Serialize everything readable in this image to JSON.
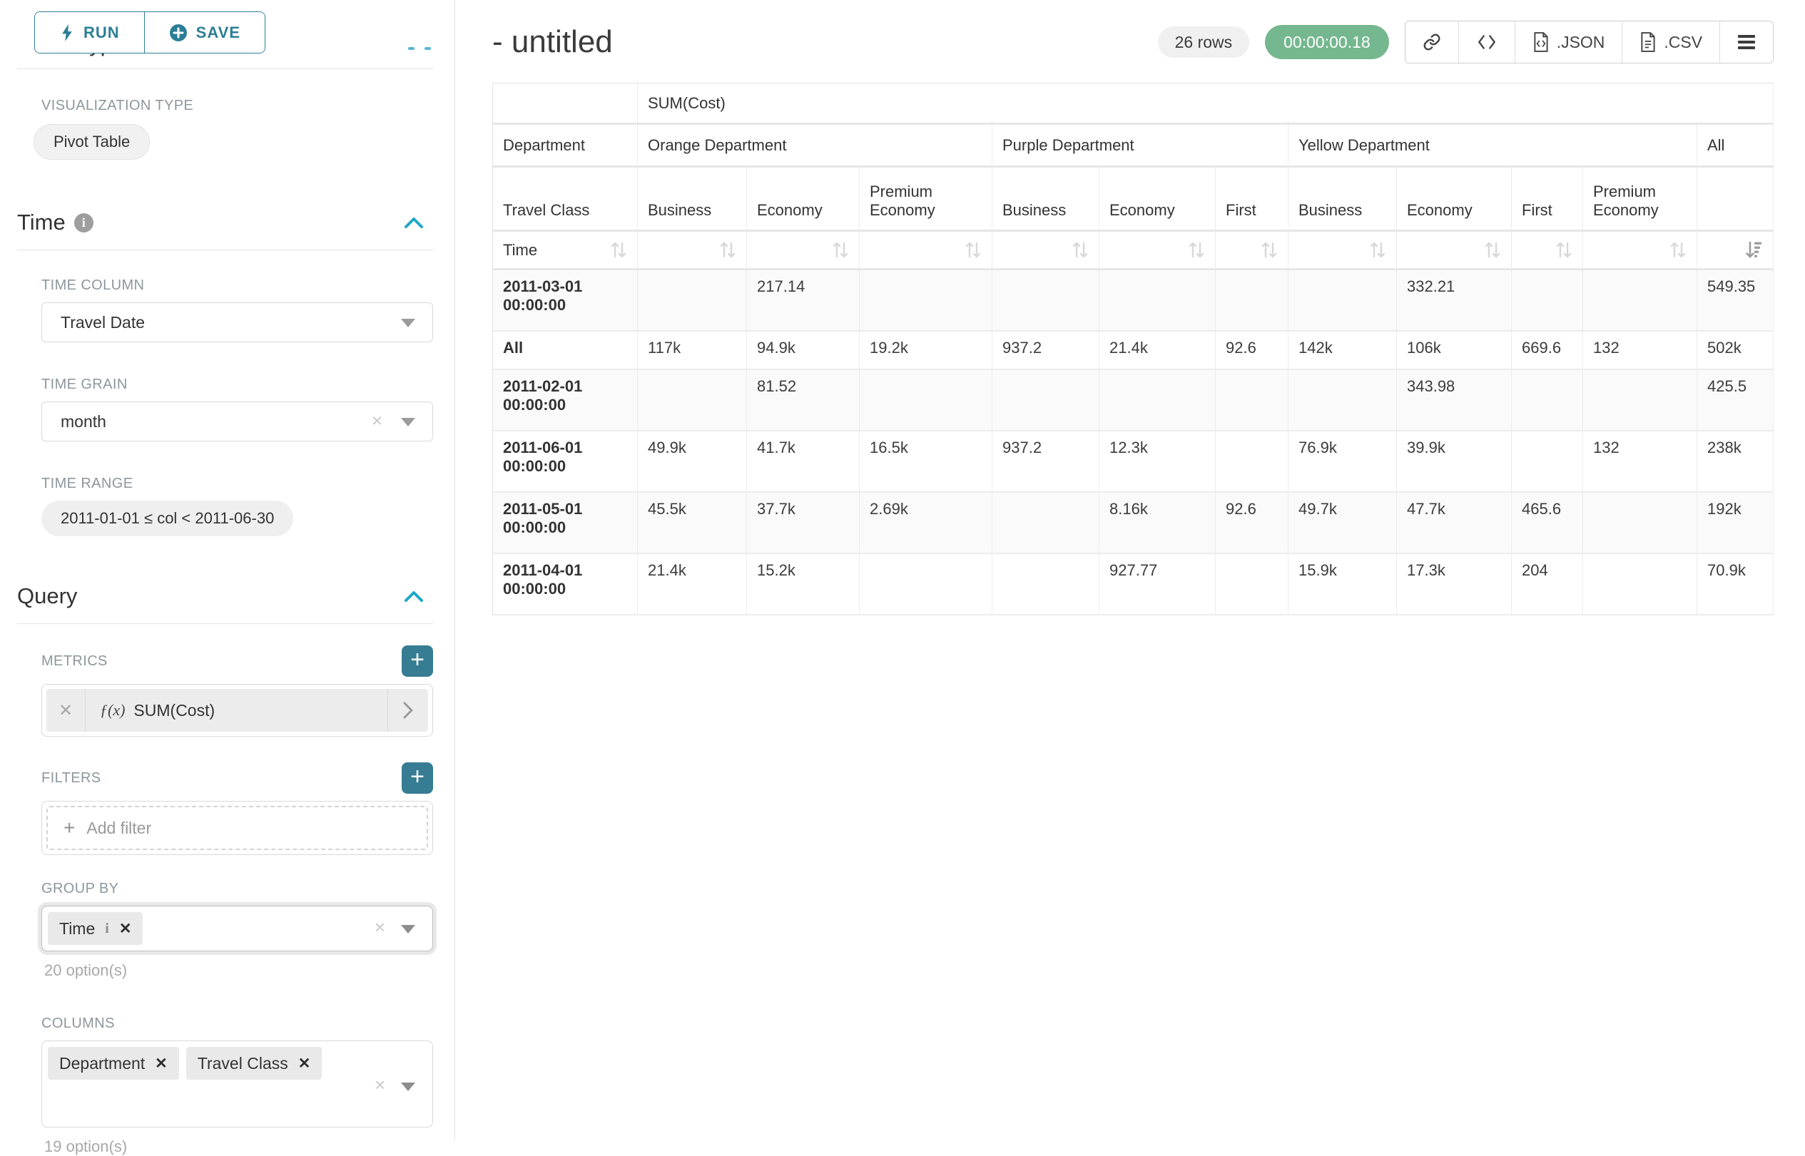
{
  "colors": {
    "button_teal": "#2c7e96",
    "plus_teal": "#367c93",
    "caret_blue": "#20a7c9",
    "timer_green": "#75b78e",
    "pill_grey": "#f1f1f1",
    "label_grey": "#8c979d"
  },
  "sidebar": {
    "run_label": "RUN",
    "save_label": "SAVE",
    "chart_type_heading": "Chart Type",
    "visualization_type": {
      "label": "VISUALIZATION TYPE",
      "value": "Pivot Table"
    },
    "time": {
      "title": "Time",
      "time_column": {
        "label": "TIME COLUMN",
        "value": "Travel Date"
      },
      "time_grain": {
        "label": "TIME GRAIN",
        "value": "month"
      },
      "time_range": {
        "label": "TIME RANGE",
        "value": "2011-01-01 ≤ col < 2011-06-30"
      }
    },
    "query": {
      "title": "Query",
      "metrics": {
        "label": "METRICS",
        "items": [
          {
            "fx": "ƒ(x)",
            "name": "SUM(Cost)"
          }
        ]
      },
      "filters": {
        "label": "FILTERS",
        "placeholder": "Add filter"
      },
      "group_by": {
        "label": "GROUP BY",
        "tags": [
          "Time"
        ],
        "hint": "20 option(s)"
      },
      "columns": {
        "label": "COLUMNS",
        "tags": [
          "Department",
          "Travel Class"
        ],
        "hint": "19 option(s)"
      }
    }
  },
  "main": {
    "title": "- untitled",
    "row_count_badge": "26 rows",
    "query_time_badge": "00:00:00.18",
    "export": {
      "json_label": ".JSON",
      "csv_label": ".CSV"
    },
    "table": {
      "metric_label": "SUM(Cost)",
      "department_label": "Department",
      "travel_class_label": "Travel Class",
      "time_label": "Time",
      "column_groups": [
        {
          "label": "Orange Department",
          "classes": [
            "Business",
            "Economy",
            "Premium Economy"
          ]
        },
        {
          "label": "Purple Department",
          "classes": [
            "Business",
            "Economy",
            "First"
          ]
        },
        {
          "label": "Yellow Department",
          "classes": [
            "Business",
            "Economy",
            "First",
            "Premium Economy"
          ]
        },
        {
          "label": "All",
          "classes": [
            ""
          ]
        }
      ],
      "rows": [
        {
          "label": "2011-03-01 00:00:00",
          "values": [
            "",
            "217.14",
            "",
            "",
            "",
            "",
            "",
            "332.21",
            "",
            "",
            "549.35"
          ]
        },
        {
          "label": "All",
          "values": [
            "117k",
            "94.9k",
            "19.2k",
            "937.2",
            "21.4k",
            "92.6",
            "142k",
            "106k",
            "669.6",
            "132",
            "502k"
          ]
        },
        {
          "label": "2011-02-01 00:00:00",
          "values": [
            "",
            "81.52",
            "",
            "",
            "",
            "",
            "",
            "343.98",
            "",
            "",
            "425.5"
          ]
        },
        {
          "label": "2011-06-01 00:00:00",
          "values": [
            "49.9k",
            "41.7k",
            "16.5k",
            "937.2",
            "12.3k",
            "",
            "76.9k",
            "39.9k",
            "",
            "132",
            "238k"
          ]
        },
        {
          "label": "2011-05-01 00:00:00",
          "values": [
            "45.5k",
            "37.7k",
            "2.69k",
            "",
            "8.16k",
            "92.6",
            "49.7k",
            "47.7k",
            "465.6",
            "",
            "192k"
          ]
        },
        {
          "label": "2011-04-01 00:00:00",
          "values": [
            "21.4k",
            "15.2k",
            "",
            "",
            "927.77",
            "",
            "15.9k",
            "17.3k",
            "204",
            "",
            "70.9k"
          ]
        }
      ]
    }
  }
}
